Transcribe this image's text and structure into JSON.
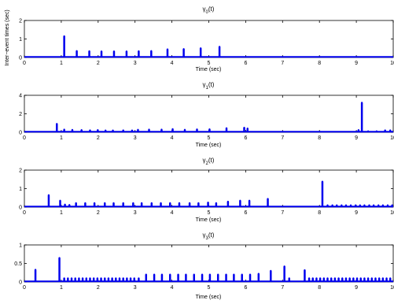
{
  "chart_data": [
    {
      "type": "stem",
      "title": "γ0(t)",
      "title_base": "γ",
      "title_sub": "0",
      "title_suffix": "(t)",
      "xlabel": "Time (sec)",
      "ylabel": "Inter−event times (sec)",
      "xlim": [
        0,
        10
      ],
      "ylim": [
        0,
        2
      ],
      "xticks": [
        "0",
        "1",
        "2",
        "3",
        "4",
        "5",
        "6",
        "7",
        "8",
        "9",
        "10"
      ],
      "yticks": [
        "0",
        "1",
        "2"
      ],
      "grid": false,
      "series": [
        {
          "x": [
            1.08,
            1.42,
            1.76,
            2.09,
            2.43,
            2.77,
            3.1,
            3.44,
            3.88,
            4.32,
            4.78,
            5.29
          ],
          "values": [
            1.15,
            0.35,
            0.34,
            0.33,
            0.33,
            0.33,
            0.34,
            0.35,
            0.44,
            0.46,
            0.5,
            0.58
          ]
        }
      ]
    },
    {
      "type": "stem",
      "title": "γ1(t)",
      "title_base": "γ",
      "title_sub": "1",
      "title_suffix": "(t)",
      "xlabel": "Time (sec)",
      "ylabel": "",
      "xlim": [
        0,
        10
      ],
      "ylim": [
        0,
        4
      ],
      "xticks": [
        "0",
        "1",
        "2",
        "3",
        "4",
        "5",
        "6",
        "7",
        "8",
        "9",
        "10"
      ],
      "yticks": [
        "0",
        "2",
        "4"
      ],
      "grid": false,
      "series": [
        {
          "x": [
            0.88,
            1.08,
            1.3,
            1.55,
            1.78,
            1.99,
            2.2,
            2.4,
            2.68,
            2.92,
            3.08,
            3.38,
            3.72,
            4.02,
            4.35,
            4.68,
            5.02,
            5.48,
            5.96,
            6.05,
            9.06,
            9.15,
            9.32,
            9.55,
            9.78,
            9.92
          ],
          "values": [
            0.92,
            0.3,
            0.27,
            0.25,
            0.22,
            0.25,
            0.2,
            0.2,
            0.22,
            0.2,
            0.28,
            0.3,
            0.3,
            0.35,
            0.28,
            0.32,
            0.33,
            0.45,
            0.5,
            0.42,
            0.25,
            3.2,
            0.12,
            0.12,
            0.22,
            0.22
          ]
        }
      ]
    },
    {
      "type": "stem",
      "title": "γ2(t)",
      "title_base": "γ",
      "title_sub": "2",
      "title_suffix": "(t)",
      "xlabel": "Time (sec)",
      "ylabel": "",
      "xlim": [
        0,
        10
      ],
      "ylim": [
        0,
        2
      ],
      "xticks": [
        "0",
        "1",
        "2",
        "3",
        "4",
        "5",
        "6",
        "7",
        "8",
        "9",
        "10"
      ],
      "yticks": [
        "0",
        "1",
        "2"
      ],
      "grid": false,
      "series": [
        {
          "x": [
            0.66,
            0.97,
            1.1,
            1.22,
            1.4,
            1.65,
            1.9,
            2.18,
            2.42,
            2.68,
            2.95,
            3.18,
            3.45,
            3.7,
            3.95,
            4.2,
            4.48,
            4.72,
            4.98,
            5.2,
            5.52,
            5.85,
            6.1,
            6.6,
            8.08,
            8.22,
            8.35,
            8.47,
            8.6,
            8.72,
            8.85,
            8.98,
            9.1,
            9.22,
            9.35,
            9.47,
            9.6,
            9.72,
            9.85,
            9.97
          ],
          "values": [
            0.65,
            0.35,
            0.14,
            0.12,
            0.22,
            0.22,
            0.22,
            0.22,
            0.22,
            0.22,
            0.22,
            0.22,
            0.22,
            0.22,
            0.22,
            0.22,
            0.22,
            0.22,
            0.25,
            0.22,
            0.3,
            0.35,
            0.35,
            0.45,
            1.38,
            0.1,
            0.1,
            0.1,
            0.1,
            0.1,
            0.1,
            0.1,
            0.1,
            0.1,
            0.1,
            0.1,
            0.1,
            0.1,
            0.1,
            0.1
          ]
        }
      ]
    },
    {
      "type": "stem",
      "title": "γ3(t)",
      "title_base": "γ",
      "title_sub": "3",
      "title_suffix": "(t)",
      "xlabel": "Time (sec)",
      "ylabel": "",
      "xlim": [
        0,
        10
      ],
      "ylim": [
        0,
        1
      ],
      "xticks": [
        "0",
        "1",
        "2",
        "3",
        "4",
        "5",
        "6",
        "7",
        "8",
        "9",
        "10"
      ],
      "yticks": [
        "0",
        "0.5",
        "1"
      ],
      "grid": false,
      "series": [
        {
          "x": [
            0.3,
            0.95,
            1.08,
            1.18,
            1.28,
            1.38,
            1.48,
            1.58,
            1.68,
            1.78,
            1.88,
            1.98,
            2.08,
            2.18,
            2.28,
            2.38,
            2.48,
            2.58,
            2.68,
            2.78,
            2.88,
            2.98,
            3.1,
            3.3,
            3.52,
            3.73,
            3.95,
            4.17,
            4.38,
            4.6,
            4.82,
            5.03,
            5.25,
            5.47,
            5.68,
            5.9,
            6.12,
            6.35,
            6.68,
            7.05,
            7.18,
            7.6,
            7.72,
            7.82,
            7.92,
            8.02,
            8.12,
            8.22,
            8.32,
            8.42,
            8.52,
            8.62,
            8.72,
            8.82,
            8.92,
            9.02,
            9.12,
            9.22,
            9.32,
            9.42,
            9.52,
            9.62,
            9.72,
            9.82,
            9.92
          ],
          "values": [
            0.33,
            0.65,
            0.1,
            0.1,
            0.1,
            0.1,
            0.1,
            0.1,
            0.1,
            0.1,
            0.1,
            0.1,
            0.1,
            0.1,
            0.1,
            0.1,
            0.1,
            0.1,
            0.1,
            0.1,
            0.1,
            0.1,
            0.1,
            0.2,
            0.2,
            0.2,
            0.2,
            0.2,
            0.2,
            0.2,
            0.2,
            0.2,
            0.2,
            0.2,
            0.2,
            0.2,
            0.2,
            0.22,
            0.3,
            0.42,
            0.1,
            0.32,
            0.1,
            0.1,
            0.1,
            0.1,
            0.1,
            0.1,
            0.1,
            0.1,
            0.1,
            0.1,
            0.1,
            0.1,
            0.1,
            0.1,
            0.1,
            0.1,
            0.1,
            0.1,
            0.1,
            0.1,
            0.1,
            0.1,
            0.1
          ]
        }
      ]
    }
  ],
  "colors": {
    "stem": "#0000ee",
    "axes": "#000000",
    "text": "#000000",
    "background": "#ffffff"
  }
}
